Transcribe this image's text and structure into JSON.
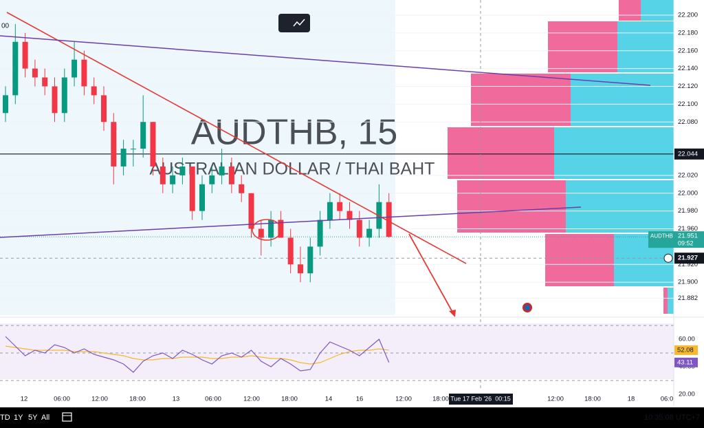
{
  "chart_data": [
    {
      "type": "candlestick",
      "watermark": "AUDTHB, 15",
      "watermark_subtitle": "AUSTRALIAN DOLLAR / THAI BAHT",
      "symbol_badge": "AUDTHB",
      "countdown": "09:52",
      "corner_label": "00",
      "up_color": "#089981",
      "down_color": "#f23645",
      "open": [
        22.09,
        22.11,
        22.17,
        22.14,
        22.13,
        22.12,
        22.09,
        22.13,
        22.15,
        22.12,
        22.11,
        22.08,
        22.03,
        22.05,
        22.05,
        22.08,
        22.03,
        22.01,
        22.02,
        22.03,
        21.98,
        22.01,
        22.02,
        22.03,
        22.01,
        22.0,
        21.96,
        21.95,
        21.97,
        21.95,
        21.92,
        21.91,
        21.94,
        21.97,
        21.99,
        21.98,
        21.97,
        21.95,
        21.96,
        21.99
      ],
      "high": [
        22.12,
        22.19,
        22.18,
        22.15,
        22.14,
        22.13,
        22.14,
        22.17,
        22.16,
        22.13,
        22.12,
        22.09,
        22.06,
        22.06,
        22.11,
        22.08,
        22.04,
        22.03,
        22.04,
        22.03,
        22.02,
        22.03,
        22.05,
        22.04,
        22.02,
        22.0,
        21.97,
        21.98,
        21.98,
        21.96,
        21.94,
        21.95,
        21.98,
        22.0,
        22.0,
        21.99,
        21.98,
        21.97,
        22.01,
        22.0
      ],
      "low": [
        22.08,
        22.1,
        22.13,
        22.12,
        22.11,
        22.08,
        22.08,
        22.12,
        22.11,
        22.1,
        22.07,
        22.01,
        22.02,
        22.03,
        22.04,
        22.02,
        22.0,
        22.0,
        22.01,
        21.97,
        21.97,
        22.0,
        22.01,
        22.0,
        21.99,
        21.95,
        21.93,
        21.94,
        21.95,
        21.91,
        21.9,
        21.9,
        21.93,
        21.96,
        21.97,
        21.96,
        21.94,
        21.94,
        21.95,
        21.95
      ],
      "close": [
        22.11,
        22.17,
        22.14,
        22.13,
        22.12,
        22.09,
        22.13,
        22.15,
        22.12,
        22.11,
        22.08,
        22.03,
        22.05,
        22.05,
        22.08,
        22.03,
        22.01,
        22.02,
        22.03,
        21.98,
        22.01,
        22.02,
        22.03,
        22.01,
        22.0,
        21.96,
        21.95,
        21.97,
        21.95,
        21.92,
        21.91,
        21.94,
        21.97,
        21.99,
        21.98,
        21.97,
        21.95,
        21.96,
        21.99,
        21.951
      ],
      "ylim": [
        21.863,
        22.217
      ],
      "yticks": [
        {
          "value": 22.2,
          "label": "22.200"
        },
        {
          "value": 22.18,
          "label": "22.180"
        },
        {
          "value": 22.16,
          "label": "22.160"
        },
        {
          "value": 22.14,
          "label": "22.140"
        },
        {
          "value": 22.12,
          "label": "22.120"
        },
        {
          "value": 22.1,
          "label": "22.100"
        },
        {
          "value": 22.08,
          "label": "22.080"
        },
        {
          "value": 22.02,
          "label": "22.020"
        },
        {
          "value": 22.0,
          "label": "22.000"
        },
        {
          "value": 21.98,
          "label": "21.980"
        },
        {
          "value": 21.96,
          "label": "21.960"
        },
        {
          "value": 21.92,
          "label": "21.920"
        },
        {
          "value": 21.9,
          "label": "21.900"
        },
        21.882
      ],
      "hline": 22.044,
      "crosshair_price": 21.927,
      "xtick_labels": [
        "12",
        "06:00",
        "12:00",
        "18:00",
        "13",
        "06:00",
        "12:00",
        "18:00",
        "14",
        "16",
        "12:00",
        "18:00",
        "12:00",
        "18:00",
        "18",
        "06:0"
      ],
      "crosshair_date": "Tue 17 Feb '26  00:15"
    },
    {
      "type": "line",
      "ylim": [
        20,
        70.5
      ],
      "yticks": [
        {
          "value": 60,
          "label": "60.00"
        },
        {
          "value": 40,
          "label": "40.00"
        },
        {
          "value": 20,
          "label": "20.00"
        }
      ],
      "levels": [
        70,
        50,
        30
      ],
      "series": [
        {
          "color": "#7e57c2",
          "values": [
            62,
            55,
            48,
            52,
            50,
            56,
            54,
            50,
            53,
            49,
            47,
            45,
            42,
            36,
            44,
            48,
            50,
            46,
            52,
            49,
            45,
            42,
            48,
            50,
            47,
            52,
            44,
            40,
            46,
            42,
            37,
            38,
            50,
            58,
            55,
            52,
            48,
            54,
            60,
            43.11
          ]
        },
        {
          "color": "#f5b82e",
          "values": [
            55,
            54,
            53,
            52,
            52,
            52,
            52,
            51,
            51,
            51,
            50,
            49,
            48,
            46,
            45,
            45,
            46,
            46,
            47,
            47,
            47,
            46,
            46,
            47,
            47,
            48,
            47,
            46,
            46,
            45,
            43,
            42,
            43,
            46,
            49,
            51,
            52,
            52,
            53,
            52.08
          ]
        }
      ]
    }
  ],
  "toolbar": {
    "ranges": [
      "TD",
      "1Y",
      "5Y",
      "All"
    ],
    "clock": "10:35:08 UTC+7"
  }
}
